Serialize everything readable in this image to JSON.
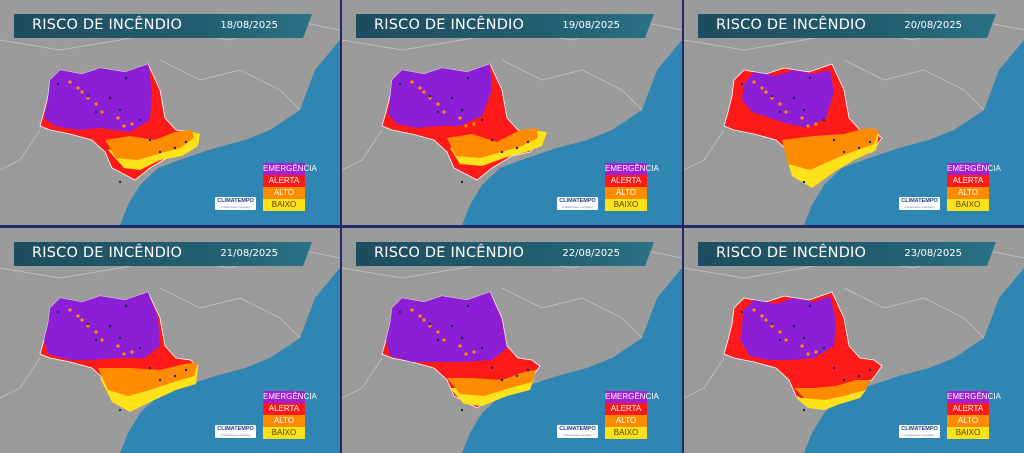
{
  "panels": [
    {
      "title": "RISCO DE INCÊNDIO",
      "date": "18/08/2025",
      "variant": 0
    },
    {
      "title": "RISCO DE INCÊNDIO",
      "date": "19/08/2025",
      "variant": 1
    },
    {
      "title": "RISCO DE INCÊNDIO",
      "date": "20/08/2025",
      "variant": 2
    },
    {
      "title": "RISCO DE INCÊNDIO",
      "date": "21/08/2025",
      "variant": 3
    },
    {
      "title": "RISCO DE INCÊNDIO",
      "date": "22/08/2025",
      "variant": 4
    },
    {
      "title": "RISCO DE INCÊNDIO",
      "date": "23/08/2025",
      "variant": 5
    }
  ],
  "legend": [
    {
      "label": "EMERGÊNCIA",
      "color": "#a11fd6",
      "text_color": "#ffffff"
    },
    {
      "label": "ALERTA",
      "color": "#ff1a1a",
      "text_color": "#ffffff"
    },
    {
      "label": "ALTO",
      "color": "#ff8c00",
      "text_color": "#ffffff"
    },
    {
      "label": "BAIXO",
      "color": "#ffe31a",
      "text_color": "#5a3a00"
    }
  ],
  "logo": {
    "name": "CLIMATEMPO",
    "tag": "A StormGeo Company"
  },
  "colors": {
    "ocean": "#2f86b2",
    "land": "#9b9b9b",
    "border": "#ffffff",
    "emergencia": "#8c1fd6",
    "alerta": "#ff1a1a",
    "alto": "#ff8c00",
    "baixo": "#ffe31a"
  }
}
